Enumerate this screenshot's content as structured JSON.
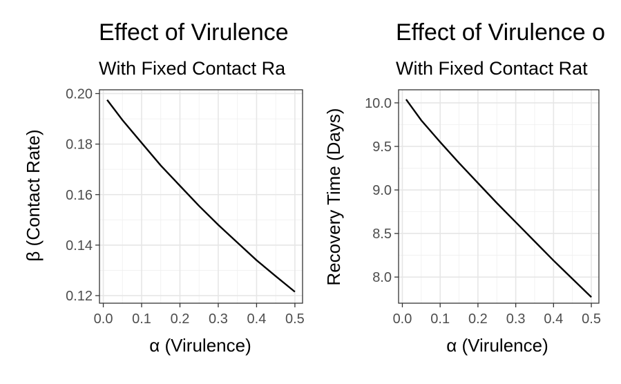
{
  "chart_data": [
    {
      "type": "line",
      "title": "Effect of Virulence",
      "subtitle": "With Fixed Contact Ra",
      "xlabel": "α  (Virulence)",
      "ylabel": "β  (Contact Rate)",
      "xlim": [
        -0.01,
        0.52
      ],
      "ylim": [
        0.117,
        0.2015
      ],
      "grid": true,
      "x_ticks": [
        0.0,
        0.1,
        0.2,
        0.3,
        0.4,
        0.5
      ],
      "x_tick_labels": [
        "0.0",
        "0.1",
        "0.2",
        "0.3",
        "0.4",
        "0.5"
      ],
      "y_ticks": [
        0.12,
        0.14,
        0.16,
        0.18,
        0.2
      ],
      "y_tick_labels": [
        "0.12",
        "0.14",
        "0.16",
        "0.18",
        "0.20"
      ],
      "series": [
        {
          "color": "#000000",
          "x": [
            0.01,
            0.05,
            0.1,
            0.15,
            0.2,
            0.25,
            0.3,
            0.35,
            0.4,
            0.45,
            0.5
          ],
          "y": [
            0.1975,
            0.1895,
            0.1805,
            0.1715,
            0.1635,
            0.1555,
            0.148,
            0.141,
            0.134,
            0.1277,
            0.1215
          ]
        }
      ]
    },
    {
      "type": "line",
      "title": "Effect of Virulence o",
      "subtitle": "With Fixed Contact Rat",
      "xlabel": "α  (Virulence)",
      "ylabel": "Recovery Time (Days)",
      "xlim": [
        -0.01,
        0.52
      ],
      "ylim": [
        7.7,
        10.15
      ],
      "grid": true,
      "x_ticks": [
        0.0,
        0.1,
        0.2,
        0.3,
        0.4,
        0.5
      ],
      "x_tick_labels": [
        "0.0",
        "0.1",
        "0.2",
        "0.3",
        "0.4",
        "0.5"
      ],
      "y_ticks": [
        8.0,
        8.5,
        9.0,
        9.5,
        10.0
      ],
      "y_tick_labels": [
        "8.0",
        "8.5",
        "9.0",
        "9.5",
        "10.0"
      ],
      "series": [
        {
          "color": "#000000",
          "x": [
            0.01,
            0.05,
            0.1,
            0.15,
            0.2,
            0.25,
            0.3,
            0.35,
            0.4,
            0.45,
            0.5
          ],
          "y": [
            10.04,
            9.8,
            9.55,
            9.31,
            9.08,
            8.85,
            8.63,
            8.41,
            8.19,
            7.98,
            7.77
          ]
        }
      ]
    }
  ]
}
